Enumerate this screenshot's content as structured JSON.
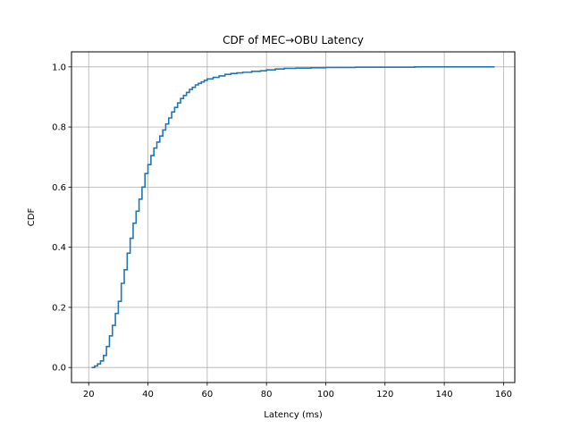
{
  "chart_data": {
    "type": "line",
    "title": "CDF of MEC→OBU Latency",
    "xlabel": "Latency (ms)",
    "ylabel": "CDF",
    "xlim": [
      14.2,
      163.8
    ],
    "ylim": [
      -0.05,
      1.05
    ],
    "xticks": [
      20,
      40,
      60,
      80,
      100,
      120,
      140,
      160
    ],
    "yticks": [
      0.0,
      0.2,
      0.4,
      0.6,
      0.8,
      1.0
    ],
    "xtick_labels": [
      "20",
      "40",
      "60",
      "80",
      "100",
      "120",
      "140",
      "160"
    ],
    "ytick_labels": [
      "0.0",
      "0.2",
      "0.4",
      "0.6",
      "0.8",
      "1.0"
    ],
    "grid": true,
    "step": true,
    "series": [
      {
        "color": "#1f77b4",
        "x": [
          21,
          22,
          23,
          24,
          25,
          26,
          27,
          28,
          29,
          30,
          31,
          32,
          33,
          34,
          35,
          36,
          37,
          38,
          39,
          40,
          41,
          42,
          43,
          44,
          45,
          46,
          47,
          48,
          49,
          50,
          51,
          52,
          53,
          54,
          55,
          56,
          57,
          58,
          59,
          60,
          62,
          64,
          66,
          68,
          70,
          72,
          75,
          78,
          80,
          83,
          86,
          90,
          95,
          100,
          110,
          120,
          130,
          140,
          150,
          157
        ],
        "y": [
          0.0,
          0.005,
          0.012,
          0.022,
          0.04,
          0.07,
          0.105,
          0.14,
          0.18,
          0.22,
          0.28,
          0.325,
          0.38,
          0.43,
          0.48,
          0.52,
          0.56,
          0.6,
          0.645,
          0.675,
          0.705,
          0.73,
          0.75,
          0.77,
          0.79,
          0.81,
          0.83,
          0.85,
          0.865,
          0.88,
          0.895,
          0.905,
          0.915,
          0.925,
          0.932,
          0.94,
          0.945,
          0.95,
          0.955,
          0.96,
          0.965,
          0.97,
          0.975,
          0.978,
          0.98,
          0.982,
          0.985,
          0.987,
          0.99,
          0.993,
          0.995,
          0.996,
          0.997,
          0.998,
          0.999,
          0.999,
          1.0,
          1.0,
          1.0,
          1.0
        ]
      }
    ]
  }
}
